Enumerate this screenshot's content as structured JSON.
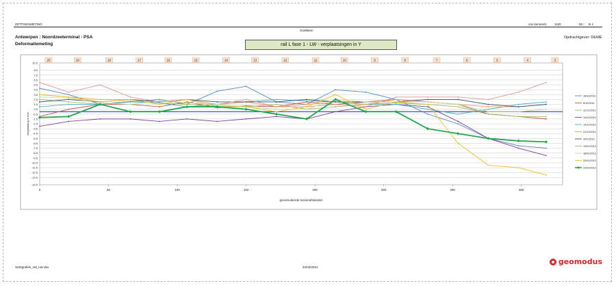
{
  "header": {
    "doc_type": "ZETTINGSMETING",
    "project_no_label": "ons kenmerk:",
    "project_no": "1100",
    "page_label": "blz.:",
    "page": "B 1",
    "section": "Grafieken",
    "location": "Antwerpen : Noordzeeterminal - PSA",
    "subject": "Deformatiemeting",
    "client": "Opdrachtgever: DEME"
  },
  "footer": {
    "file": "1100grafiek_rail_LW.xlsx",
    "date": "22/03/2012"
  },
  "logo": {
    "text": "geomodus",
    "color": "#d8262b"
  },
  "chart_data": {
    "type": "line",
    "title": "rail L fase 1 - LW - verplaatsingen in Y",
    "xlabel": "geoomuleerde tussenafstanden",
    "ylabel": "verplaatsing in mm",
    "xlim": [
      0,
      380
    ],
    "ylim": [
      -15.0,
      10.0
    ],
    "x_ticks": [
      0,
      50,
      100,
      150,
      200,
      250,
      300,
      350
    ],
    "y_ticks": [
      10.0,
      8.5,
      7.5,
      6.5,
      5.5,
      4.5,
      3.5,
      2.5,
      1.5,
      0.5,
      -0.5,
      -1.5,
      -2.5,
      -3.5,
      -4.5,
      -5.5,
      -6.5,
      -7.5,
      -8.5,
      -9.5,
      -10.5,
      -11.5,
      -12.5,
      -13.5,
      -15.0
    ],
    "point_labels": [
      "20",
      "19",
      "18",
      "17",
      "16",
      "15",
      "14",
      "13",
      "12",
      "11",
      "10",
      "9",
      "8",
      "7",
      "6",
      "5",
      "4",
      "3"
    ],
    "grid": true,
    "legend_position": "right",
    "reference_color": "#1f3f9f",
    "x": [
      0,
      21,
      44,
      66,
      87,
      107,
      129,
      150,
      172,
      194,
      215,
      237,
      259,
      282,
      304,
      326,
      348,
      368
    ],
    "series": [
      {
        "name": "18/11/2011",
        "color": "#4f86c6",
        "values": [
          4.8,
          3.5,
          1.5,
          2.0,
          2.5,
          1.5,
          4.2,
          5.2,
          2.0,
          1.5,
          4.5,
          4.0,
          2.5,
          -0.5,
          -2.5,
          -5.5,
          -7.0,
          -7.5
        ]
      },
      {
        "name": "8/12/2011",
        "color": "#c0504d",
        "values": [
          -1.0,
          0.5,
          1.5,
          1.5,
          1.0,
          2.0,
          0.8,
          1.2,
          1.0,
          2.0,
          1.5,
          2.0,
          2.5,
          2.0,
          1.5,
          -0.5,
          -1.0,
          -1.5
        ]
      },
      {
        "name": "12/12/2011",
        "color": "#9bbb59",
        "values": [
          2.5,
          2.0,
          1.5,
          2.2,
          1.8,
          1.5,
          1.2,
          1.0,
          1.5,
          0.5,
          1.0,
          1.5,
          1.8,
          1.5,
          1.0,
          -0.5,
          -1.0,
          -1.0
        ]
      },
      {
        "name": "14/12/2011",
        "color": "#7f3f98",
        "values": [
          -3.0,
          -2.0,
          -1.5,
          -1.5,
          -2.0,
          -1.5,
          -2.0,
          -1.5,
          -1.0,
          -1.5,
          0.0,
          1.0,
          1.5,
          1.0,
          -2.0,
          -5.5,
          -7.5,
          -9.0
        ]
      },
      {
        "name": "19/12/2011",
        "color": "#4bacc6",
        "values": [
          1.0,
          1.5,
          1.5,
          2.0,
          1.8,
          1.0,
          1.5,
          2.0,
          2.5,
          2.2,
          2.0,
          1.5,
          1.5,
          0.5,
          -0.5,
          0.5,
          1.5,
          2.0
        ]
      },
      {
        "name": "21/12/2011",
        "color": "#f79646",
        "values": [
          3.5,
          3.0,
          2.5,
          2.5,
          2.0,
          2.5,
          1.5,
          2.0,
          1.0,
          1.5,
          2.0,
          1.5,
          2.5,
          2.0,
          1.5,
          1.0,
          1.0,
          1.5
        ]
      },
      {
        "name": "4/01/2012",
        "color": "#2c4d75",
        "values": [
          2.0,
          2.5,
          2.0,
          2.5,
          2.0,
          2.5,
          2.0,
          2.0,
          2.0,
          2.5,
          2.0,
          2.0,
          2.0,
          2.5,
          2.5,
          1.5,
          1.0,
          1.5
        ]
      },
      {
        "name": "13/01/2012",
        "color": "#d99694",
        "values": [
          6.0,
          4.0,
          5.5,
          3.0,
          2.0,
          2.5,
          1.5,
          2.5,
          1.0,
          1.0,
          1.5,
          1.0,
          3.0,
          3.0,
          3.0,
          2.5,
          4.0,
          6.0
        ]
      },
      {
        "name": "18/01/2012",
        "color": "#c3d69b",
        "values": [
          3.0,
          2.8,
          1.8,
          1.5,
          2.2,
          1.8,
          1.5,
          1.0,
          0.5,
          0.5,
          2.5,
          2.0,
          2.0,
          2.0,
          1.5,
          0.0,
          0.0,
          0.5
        ]
      },
      {
        "name": "20/01/2012",
        "color": "#f0c020",
        "values": [
          3.5,
          3.0,
          2.0,
          2.5,
          1.5,
          2.5,
          1.0,
          1.0,
          0.0,
          1.0,
          3.5,
          0.5,
          2.0,
          1.5,
          -6.5,
          -11.0,
          -11.5,
          -13.0
        ]
      },
      {
        "name": "22/03/2012",
        "color": "#1ea84c",
        "values": [
          -1.2,
          -1.0,
          1.5,
          0.0,
          0.0,
          1.0,
          1.0,
          0.5,
          -0.5,
          -1.5,
          2.5,
          0.0,
          0.0,
          -3.5,
          -4.5,
          -5.5,
          -6.0,
          -6.2
        ]
      }
    ]
  }
}
